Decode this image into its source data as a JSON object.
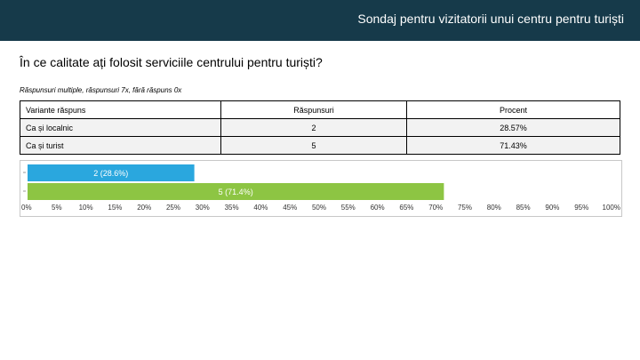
{
  "header": {
    "title": "Sondaj pentru vizitatorii unui centru pentru turiști"
  },
  "question": "În ce calitate ați folosit serviciile centrului pentru turiști?",
  "note": "Răspunsuri multiple, răspunsuri 7x, fără răspuns 0x",
  "table": {
    "headers": [
      "Variante răspuns",
      "Răspunsuri",
      "Procent"
    ],
    "rows": [
      [
        "Ca și localnic",
        "2",
        "28.57%"
      ],
      [
        "Ca și turist",
        "5",
        "71.43%"
      ]
    ]
  },
  "chart_data": {
    "type": "bar",
    "orientation": "horizontal",
    "categories": [
      "Ca și localnic",
      "Ca și turist"
    ],
    "values": [
      28.6,
      71.4
    ],
    "counts": [
      2,
      5
    ],
    "data_labels": [
      "2 (28.6%)",
      "5 (71.4%)"
    ],
    "colors": [
      "#2aa7de",
      "#8dc543"
    ],
    "xlim": [
      0,
      100
    ],
    "xticks": [
      "0%",
      "5%",
      "10%",
      "15%",
      "20%",
      "25%",
      "30%",
      "35%",
      "40%",
      "45%",
      "50%",
      "55%",
      "60%",
      "65%",
      "70%",
      "75%",
      "80%",
      "85%",
      "90%",
      "95%",
      "100%"
    ],
    "title": "",
    "xlabel": "",
    "ylabel": ""
  }
}
